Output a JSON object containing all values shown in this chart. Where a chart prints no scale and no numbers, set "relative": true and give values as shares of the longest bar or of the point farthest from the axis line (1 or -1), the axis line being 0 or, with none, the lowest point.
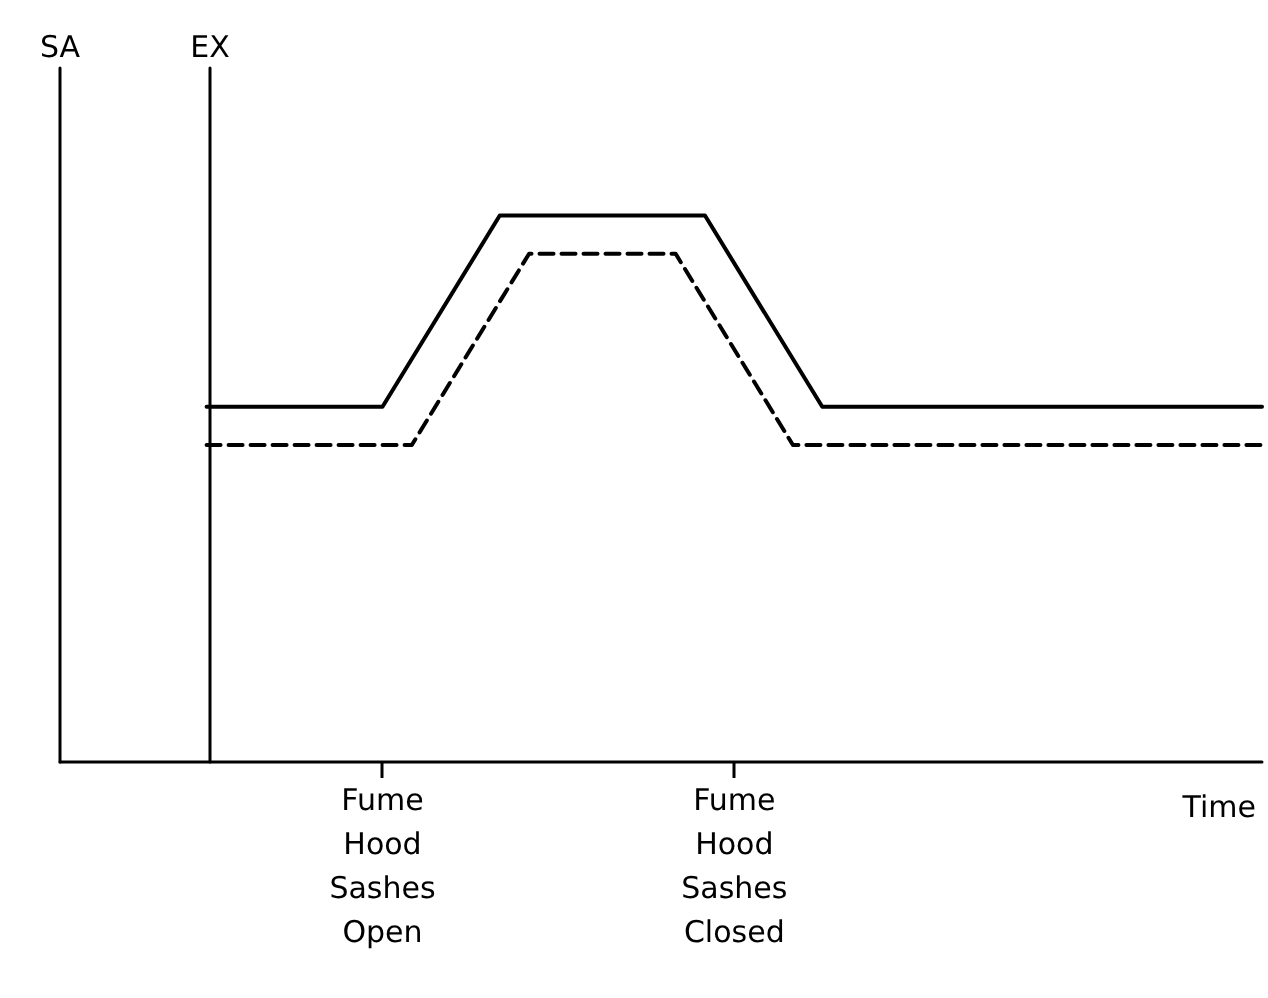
{
  "chart_data": {
    "type": "line",
    "relative": true,
    "xlabel": "Time",
    "annotations": [
      "SA",
      "EX"
    ],
    "categories": [
      null,
      null,
      null,
      null,
      null,
      null,
      null,
      null,
      null,
      null,
      null,
      "Fume\nHood\nSashes\nOpen",
      null,
      null,
      null,
      null,
      null,
      null,
      null,
      null,
      null,
      null,
      null,
      "Fume\nHood\nSashes\nClosed",
      null,
      null,
      null,
      null,
      null,
      null,
      null,
      null,
      null,
      null,
      null,
      null,
      null,
      null,
      null,
      null,
      null,
      null
    ],
    "series": [
      {
        "color": "#000000",
        "line_style": "solid",
        "values": [
          null,
          null,
          null,
          null,
          null,
          0.65,
          null,
          null,
          null,
          null,
          null,
          0.65,
          null,
          null,
          null,
          1,
          null,
          null,
          null,
          null,
          null,
          null,
          1,
          null,
          null,
          null,
          0.65,
          null,
          null,
          null,
          null,
          null,
          null,
          null,
          null,
          null,
          null,
          null,
          null,
          null,
          null,
          0.65
        ]
      },
      {
        "color": "#000000",
        "line_style": "dashed",
        "values": [
          null,
          null,
          null,
          null,
          null,
          0.58,
          null,
          null,
          null,
          null,
          null,
          null,
          0.58,
          null,
          null,
          null,
          0.93,
          null,
          null,
          null,
          null,
          0.93,
          null,
          null,
          null,
          0.58,
          null,
          null,
          null,
          null,
          null,
          null,
          null,
          null,
          null,
          null,
          null,
          null,
          null,
          null,
          null,
          0.58
        ]
      }
    ],
    "marker": "none"
  }
}
